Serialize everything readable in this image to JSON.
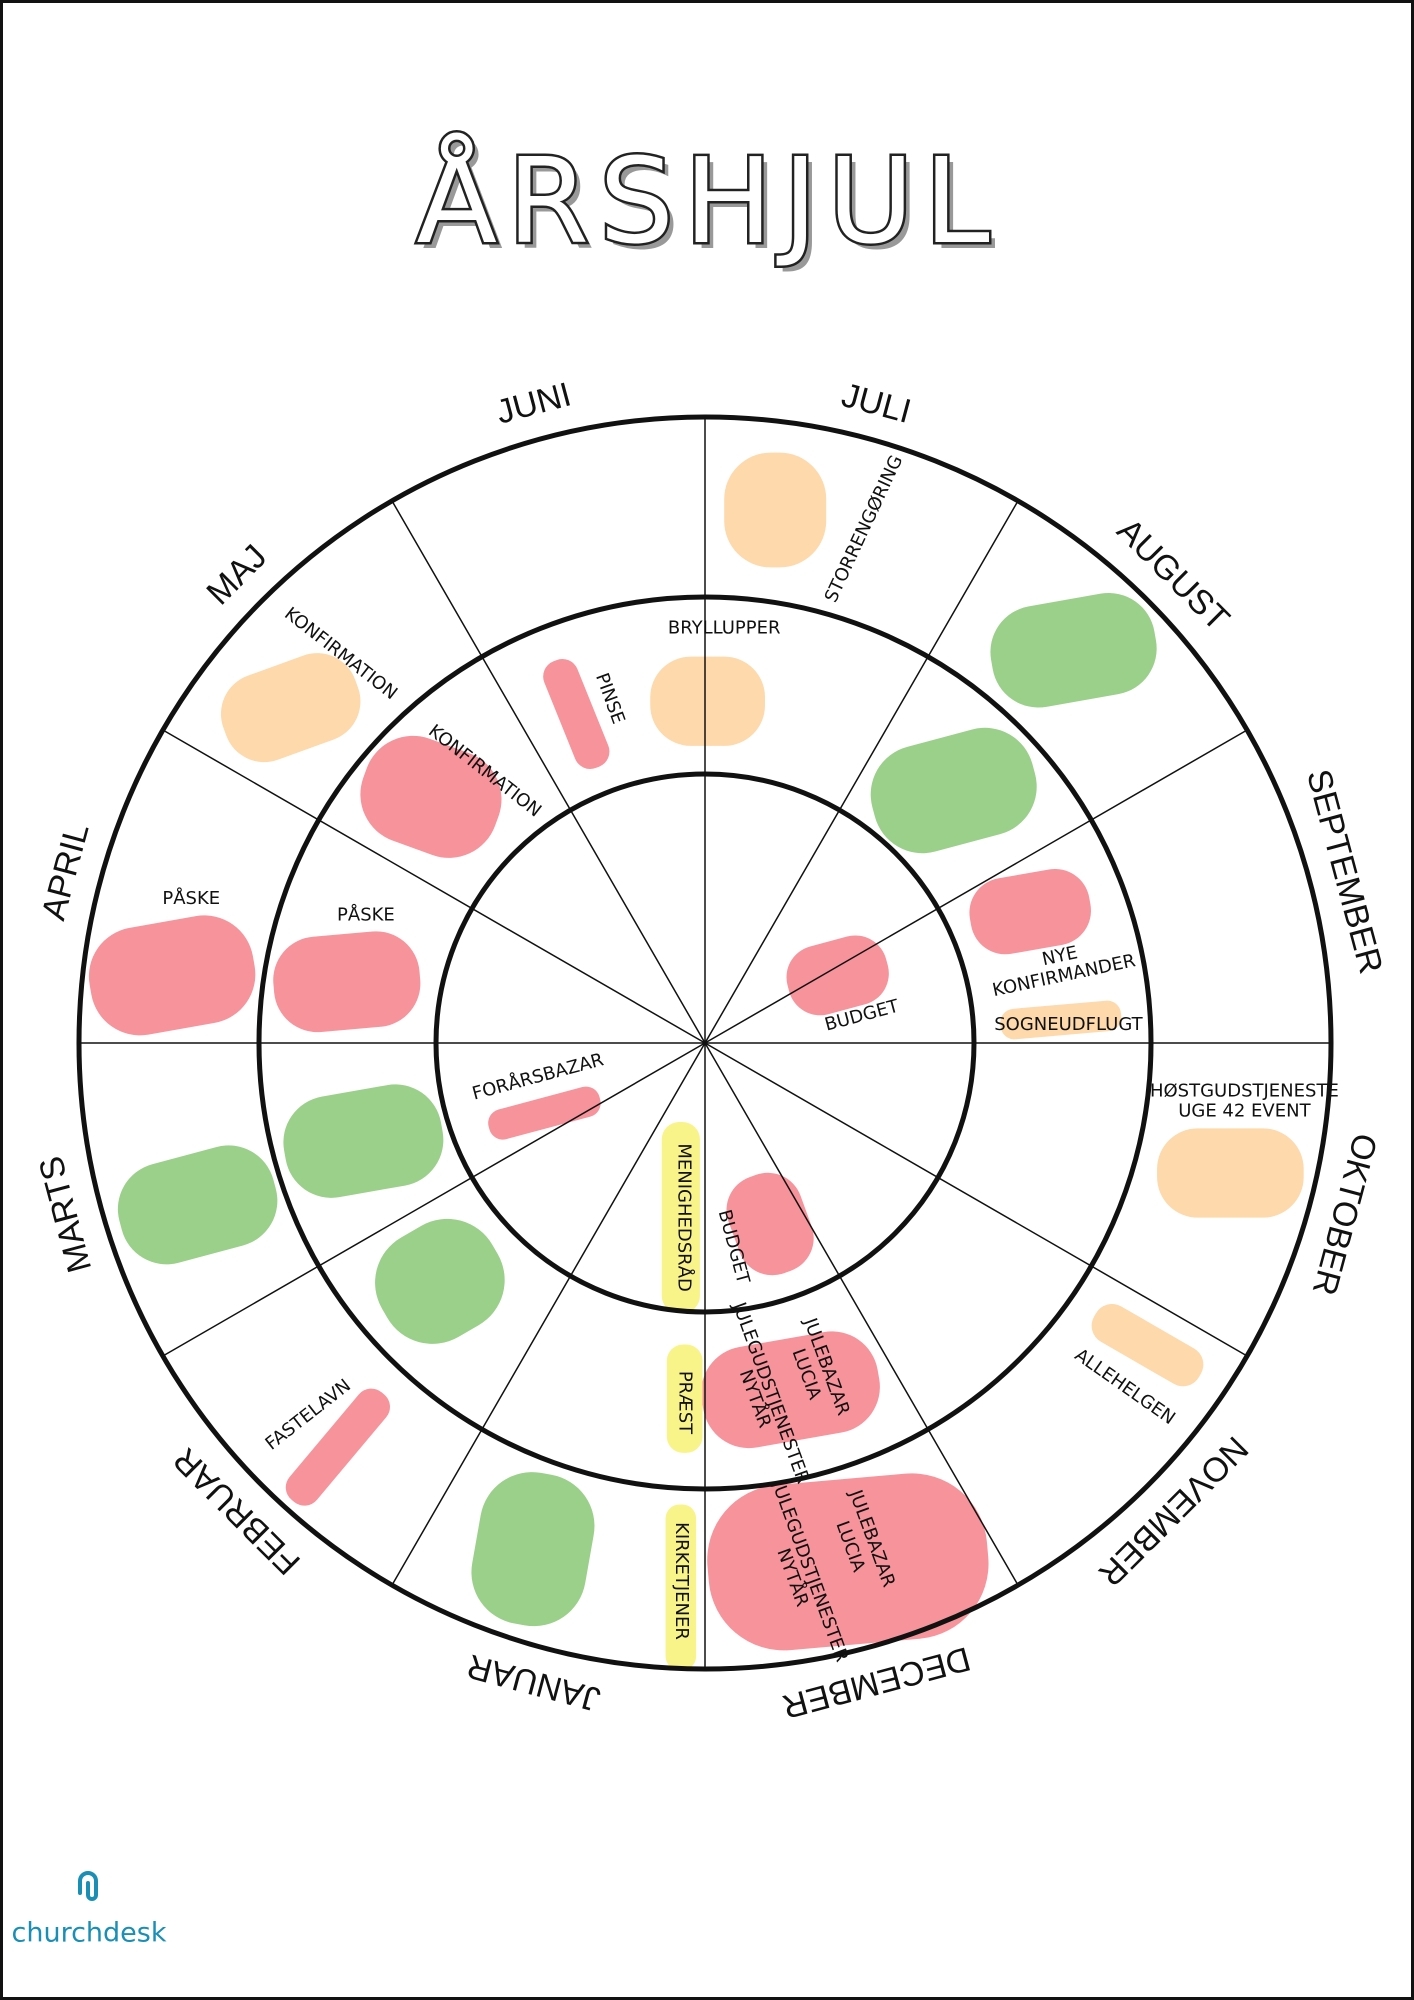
{
  "header": {
    "title": "ÅRSHJUL"
  },
  "months": [
    "JULI",
    "AUGUST",
    "SEPTEMBER",
    "OKTOBER",
    "NOVEMBER",
    "DECEMBER",
    "JANUAR",
    "FEBRUAR",
    "MARTS",
    "APRIL",
    "MAJ",
    "JUNI"
  ],
  "events": [
    {
      "lines": [
        "STORRENGØRING"
      ]
    },
    {
      "lines": [
        "BRYLLUPPER"
      ]
    },
    {
      "lines": [
        "KONFIRMATION"
      ]
    },
    {
      "lines": [
        "KONFIRMATION"
      ]
    },
    {
      "lines": [
        "PINSE"
      ]
    },
    {
      "lines": [
        "PÅSKE"
      ]
    },
    {
      "lines": [
        "PÅSKE"
      ]
    },
    {
      "lines": [
        "NYE",
        "KONFIRMANDER"
      ]
    },
    {
      "lines": [
        "BUDGET"
      ]
    },
    {
      "lines": [
        "SOGNEUDFLUGT"
      ]
    },
    {
      "lines": [
        "HØSTGUDSTJENESTE",
        "UGE 42 EVENT"
      ]
    },
    {
      "lines": [
        "FORÅRSBAZAR"
      ]
    },
    {
      "lines": [
        "MENIGHEDSRÅD"
      ]
    },
    {
      "lines": [
        "BUDGET"
      ]
    },
    {
      "lines": [
        "JULEBAZAR",
        "LUCIA"
      ]
    },
    {
      "lines": [
        "JULEGUDSTJENESTER",
        "NYTÅR"
      ]
    },
    {
      "lines": [
        "PRÆST"
      ]
    },
    {
      "lines": [
        "ALLEHELGEN"
      ]
    },
    {
      "lines": [
        "FASTELAVN"
      ]
    },
    {
      "lines": [
        "KIRKETJENER"
      ]
    },
    {
      "lines": [
        "JULEBAZAR",
        "LUCIA"
      ]
    },
    {
      "lines": [
        "JULEGUDSTJENESTER",
        "NYTÅR"
      ]
    }
  ],
  "brand": {
    "name": "churchdesk"
  }
}
